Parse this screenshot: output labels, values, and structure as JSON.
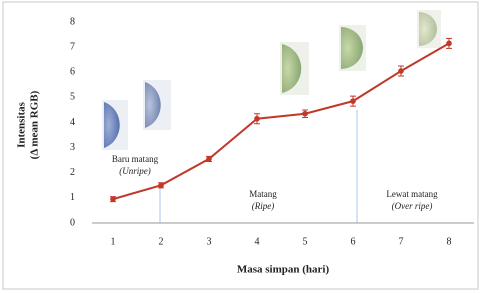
{
  "chart_data": {
    "type": "line",
    "y_label": [
      "Intensitas",
      "(Δ mean RGB)"
    ],
    "x_label": "Masa simpan (hari)",
    "categories": [
      "1",
      "2",
      "3",
      "4",
      "5",
      "6",
      "7",
      "8"
    ],
    "values": [
      0.95,
      1.5,
      2.55,
      4.15,
      4.35,
      4.85,
      6.05,
      7.15
    ],
    "errors": [
      0.1,
      0.1,
      0.1,
      0.2,
      0.15,
      0.2,
      0.2,
      0.2
    ],
    "color": "#c0392b",
    "ylim": [
      0,
      8
    ],
    "yticks": [
      0,
      1,
      2,
      3,
      4,
      5,
      6,
      7,
      8
    ],
    "annotations": [
      {
        "label": "Baru matang",
        "sub": "(Unripe)"
      },
      {
        "label": "Matang",
        "sub": "(Ripe)"
      },
      {
        "label": "Lewat matang",
        "sub": "(Over ripe)"
      }
    ]
  }
}
